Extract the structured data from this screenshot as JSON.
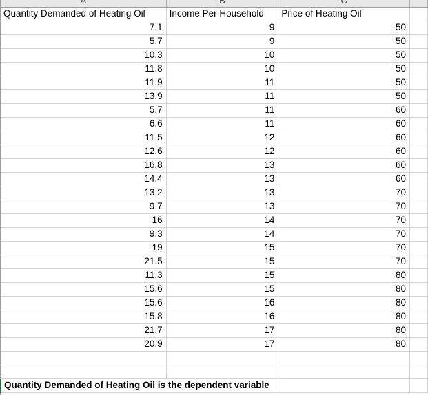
{
  "sheet": {
    "column_letters": [
      "A",
      "B",
      "C"
    ],
    "columns": [
      "Quantity Demanded of Heating Oil",
      "Income Per Household",
      "Price of Heating Oil"
    ],
    "rows": [
      [
        7.1,
        9,
        50
      ],
      [
        5.7,
        9,
        50
      ],
      [
        10.3,
        10,
        50
      ],
      [
        11.8,
        10,
        50
      ],
      [
        11.9,
        11,
        50
      ],
      [
        13.9,
        11,
        50
      ],
      [
        5.7,
        11,
        60
      ],
      [
        6.6,
        11,
        60
      ],
      [
        11.5,
        12,
        60
      ],
      [
        12.6,
        12,
        60
      ],
      [
        16.8,
        13,
        60
      ],
      [
        14.4,
        13,
        60
      ],
      [
        13.2,
        13,
        70
      ],
      [
        9.7,
        13,
        70
      ],
      [
        16,
        14,
        70
      ],
      [
        9.3,
        14,
        70
      ],
      [
        19,
        15,
        70
      ],
      [
        21.5,
        15,
        70
      ],
      [
        11.3,
        15,
        80
      ],
      [
        15.6,
        15,
        80
      ],
      [
        15.6,
        16,
        80
      ],
      [
        15.8,
        16,
        80
      ],
      [
        21.7,
        17,
        80
      ],
      [
        20.9,
        17,
        80
      ]
    ],
    "note": "Quantity Demanded of Heating Oil is the dependent variable",
    "colors": {
      "gridline": "#d4d4d4",
      "header_bg": "#e7e7e7",
      "header_border": "#9c9c9c",
      "header_separator": "#ababab",
      "selection_green": "#217346",
      "text": "#000000"
    }
  }
}
